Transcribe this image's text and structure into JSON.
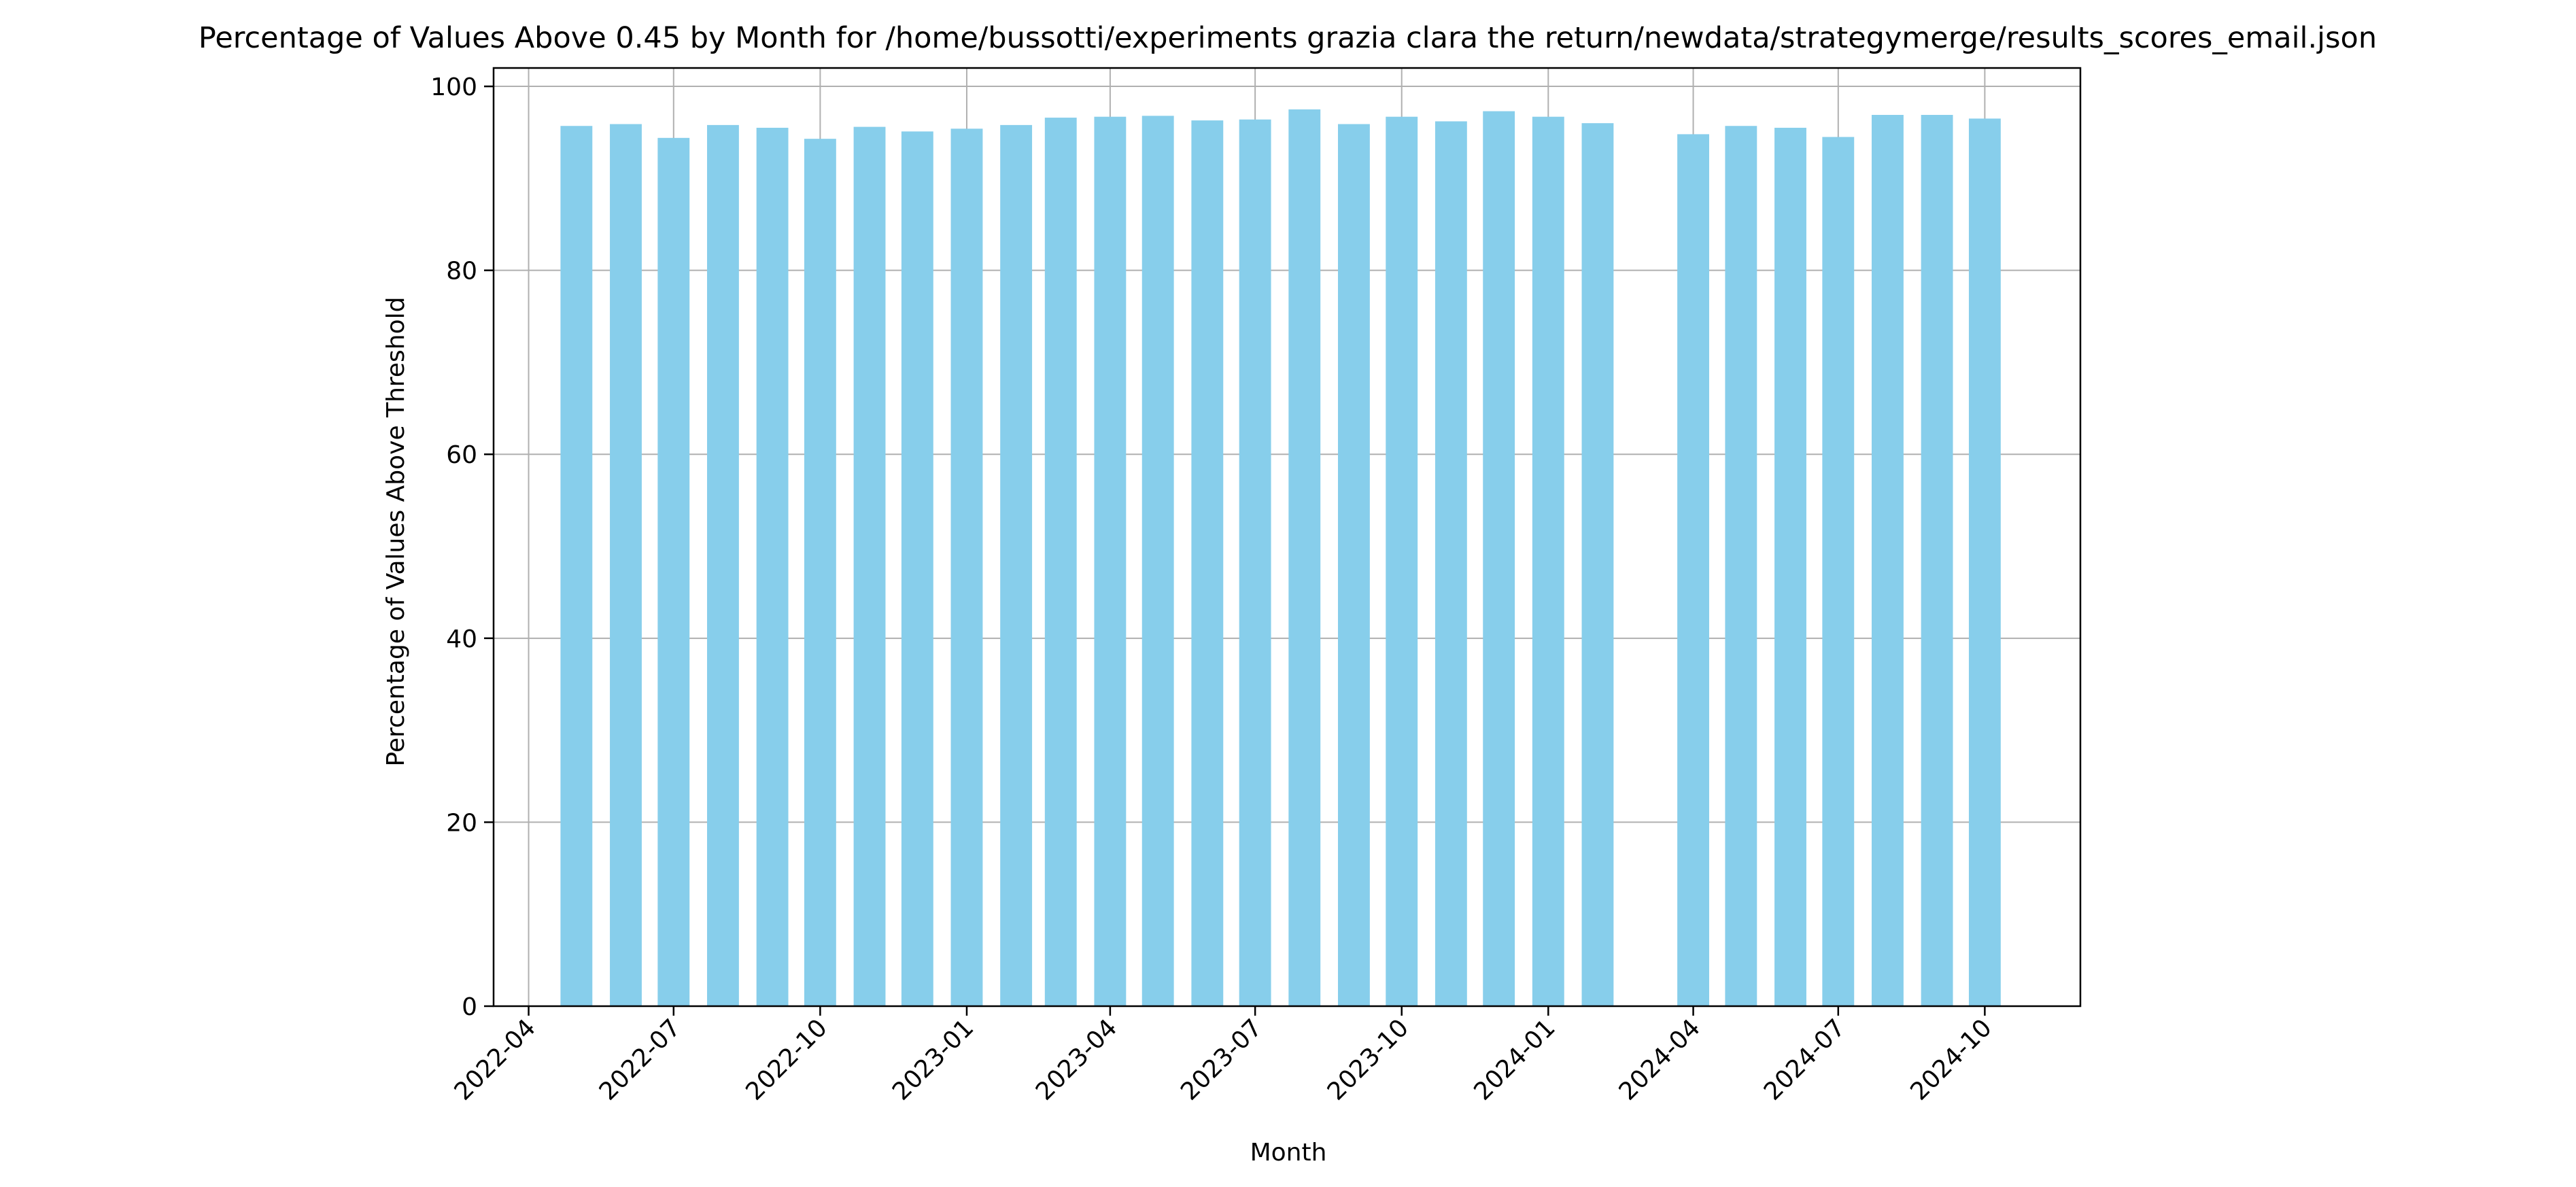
{
  "chart_data": {
    "type": "bar",
    "title": "Percentage of Values Above 0.45 by Month for /home/bussotti/experiments grazia clara the return/newdata/strategymerge/results_scores_email.json",
    "xlabel": "Month",
    "ylabel": "Percentage of Values Above Threshold",
    "ylim": [
      0,
      102
    ],
    "yticks": [
      0,
      20,
      40,
      60,
      80,
      100
    ],
    "xlim": [
      "2022-03-10",
      "2024-11-30"
    ],
    "xticks": [
      "2022-04",
      "2022-07",
      "2022-10",
      "2023-01",
      "2023-04",
      "2023-07",
      "2023-10",
      "2024-01",
      "2024-04",
      "2024-07",
      "2024-10"
    ],
    "grid": true,
    "bar_color": "#87ceeb",
    "categories": [
      "2022-05",
      "2022-06",
      "2022-07",
      "2022-08",
      "2022-09",
      "2022-10",
      "2022-11",
      "2022-12",
      "2023-01",
      "2023-02",
      "2023-03",
      "2023-04",
      "2023-05",
      "2023-06",
      "2023-07",
      "2023-08",
      "2023-09",
      "2023-10",
      "2023-11",
      "2023-12",
      "2024-01",
      "2024-02",
      "2024-04",
      "2024-05",
      "2024-06",
      "2024-07",
      "2024-08",
      "2024-09",
      "2024-10"
    ],
    "values": [
      95.7,
      95.9,
      94.4,
      95.8,
      95.5,
      94.3,
      95.6,
      95.1,
      95.4,
      95.8,
      96.6,
      96.7,
      96.8,
      96.3,
      96.4,
      97.5,
      95.9,
      96.7,
      96.2,
      97.3,
      96.7,
      96.0,
      94.8,
      95.7,
      95.5,
      94.5,
      96.9,
      96.9,
      96.5
    ]
  }
}
